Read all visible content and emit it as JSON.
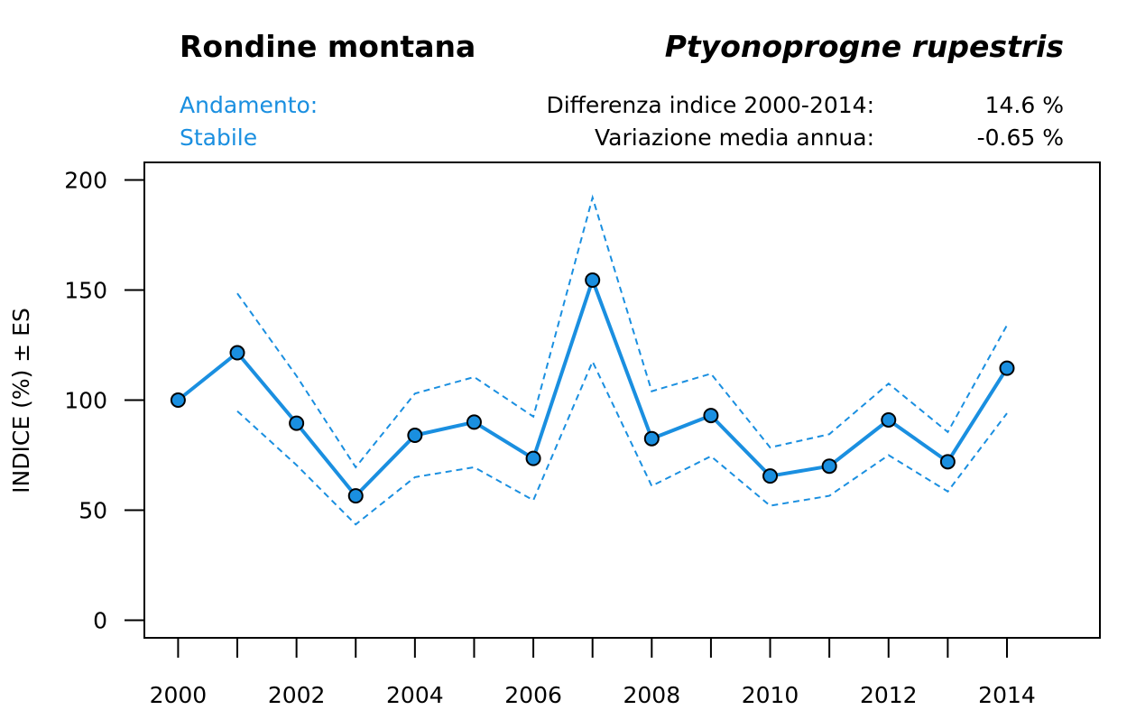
{
  "header": {
    "common_name": "Rondine montana",
    "latin_name": "Ptyonoprogne rupestris",
    "trend_label": "Andamento:",
    "trend_value": "Stabile",
    "diff_label": "Differenza indice 2000-2014:",
    "diff_value": "14.6 %",
    "var_label": "Variazione media annua:",
    "var_value": "-0.65 %"
  },
  "colors": {
    "accent": "#1a8fe0",
    "marker_fill": "#1a8fe0",
    "marker_stroke": "#000000"
  },
  "chart_data": {
    "type": "line",
    "title": "Rondine montana",
    "subtitle": "Ptyonoprogne rupestris",
    "xlabel": "",
    "ylabel": "INDICE (%) ± ES",
    "x": [
      2000,
      2001,
      2002,
      2003,
      2004,
      2005,
      2006,
      2007,
      2008,
      2009,
      2010,
      2011,
      2012,
      2013,
      2014
    ],
    "xticks": [
      2000,
      2001,
      2002,
      2003,
      2004,
      2005,
      2006,
      2007,
      2008,
      2009,
      2010,
      2011,
      2012,
      2013,
      2014
    ],
    "xtick_labels": [
      "2000",
      "",
      "2002",
      "",
      "2004",
      "",
      "2006",
      "",
      "2008",
      "",
      "2010",
      "",
      "2012",
      "",
      "2014"
    ],
    "yticks": [
      0,
      50,
      100,
      150,
      200
    ],
    "ytick_labels": [
      "0",
      "50",
      "100",
      "150",
      "200"
    ],
    "xlim": [
      1999.43,
      2015.57
    ],
    "ylim": [
      -8,
      208
    ],
    "grid": false,
    "series": [
      {
        "name": "Indice",
        "style": "solid",
        "markers": true,
        "values": [
          100,
          121.5,
          89.5,
          56.5,
          84,
          90,
          73.5,
          154.5,
          82.5,
          93,
          65.5,
          70,
          91,
          72,
          114.5
        ]
      },
      {
        "name": "Indice + ES",
        "style": "dashed",
        "markers": false,
        "x": [
          2001,
          2002,
          2003,
          2004,
          2005,
          2006,
          2007,
          2008,
          2009,
          2010,
          2011,
          2012,
          2013,
          2014
        ],
        "values": [
          148.5,
          111,
          69.5,
          103,
          110.5,
          92.5,
          192,
          104,
          112,
          78.5,
          84.5,
          107.5,
          85.5,
          134
        ]
      },
      {
        "name": "Indice - ES",
        "style": "dashed",
        "markers": false,
        "x": [
          2001,
          2002,
          2003,
          2004,
          2005,
          2006,
          2007,
          2008,
          2009,
          2010,
          2011,
          2012,
          2013,
          2014
        ],
        "values": [
          95,
          70.5,
          43.5,
          65,
          69.5,
          54.5,
          117.5,
          61,
          74.5,
          52,
          56.5,
          75,
          58.5,
          94
        ]
      }
    ]
  }
}
